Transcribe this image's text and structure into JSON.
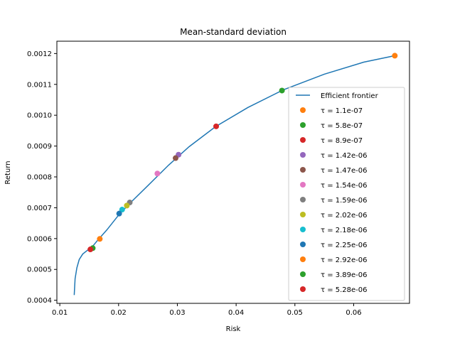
{
  "chart_data": {
    "type": "scatter",
    "title": "Mean-standard deviation",
    "xlabel": "Risk",
    "ylabel": "Return",
    "xlim": [
      0.0095,
      0.0695
    ],
    "ylim": [
      0.00039,
      0.00124
    ],
    "xticks": [
      0.01,
      0.02,
      0.03,
      0.04,
      0.05,
      0.06
    ],
    "xtick_labels": [
      "0.01",
      "0.02",
      "0.03",
      "0.04",
      "0.05",
      "0.06"
    ],
    "yticks": [
      0.0004,
      0.0005,
      0.0006,
      0.0007,
      0.0008,
      0.0009,
      0.001,
      0.0011,
      0.0012
    ],
    "ytick_labels": [
      "0.0004",
      "0.0005",
      "0.0006",
      "0.0007",
      "0.0008",
      "0.0009",
      "0.0010",
      "0.0011",
      "0.0012"
    ],
    "grid": false,
    "legend_position": "lower-right",
    "frontier": {
      "name": "Efficient frontier",
      "color": "#1f77b4",
      "x": [
        0.01245,
        0.0126,
        0.0129,
        0.0133,
        0.0139,
        0.0147,
        0.0155,
        0.0165,
        0.018,
        0.02,
        0.022,
        0.025,
        0.0285,
        0.032,
        0.0365,
        0.042,
        0.048,
        0.055,
        0.0617,
        0.067
      ],
      "y": [
        0.000417,
        0.00047,
        0.000505,
        0.000532,
        0.00055,
        0.000562,
        0.000573,
        0.000596,
        0.000628,
        0.000676,
        0.000716,
        0.000772,
        0.000838,
        0.000898,
        0.000963,
        0.001025,
        0.001082,
        0.001133,
        0.001172,
        0.001193
      ]
    },
    "points": [
      {
        "label": "τ = 1.1e-07",
        "color": "#ff7f0e",
        "x": 0.067,
        "y": 0.001193
      },
      {
        "label": "τ = 5.8e-07",
        "color": "#2ca02c",
        "x": 0.0478,
        "y": 0.00108
      },
      {
        "label": "τ = 8.9e-07",
        "color": "#d62728",
        "x": 0.0366,
        "y": 0.000964
      },
      {
        "label": "τ = 1.42e-06",
        "color": "#9467bd",
        "x": 0.0302,
        "y": 0.000872
      },
      {
        "label": "τ = 1.47e-06",
        "color": "#8c564b",
        "x": 0.0297,
        "y": 0.000861
      },
      {
        "label": "τ = 1.54e-06",
        "color": "#e377c2",
        "x": 0.0266,
        "y": 0.000811
      },
      {
        "label": "τ = 1.59e-06",
        "color": "#7f7f7f",
        "x": 0.0219,
        "y": 0.000717
      },
      {
        "label": "τ = 2.02e-06",
        "color": "#bcbd22",
        "x": 0.0214,
        "y": 0.000707
      },
      {
        "label": "τ = 2.18e-06",
        "color": "#17becf",
        "x": 0.0206,
        "y": 0.000694
      },
      {
        "label": "τ = 2.25e-06",
        "color": "#1f77b4",
        "x": 0.0201,
        "y": 0.000681
      },
      {
        "label": "τ = 2.92e-06",
        "color": "#ff7f0e",
        "x": 0.0168,
        "y": 0.000599
      },
      {
        "label": "τ = 3.89e-06",
        "color": "#2ca02c",
        "x": 0.0156,
        "y": 0.000569
      },
      {
        "label": "τ = 5.28e-06",
        "color": "#d62728",
        "x": 0.0152,
        "y": 0.000565
      }
    ]
  }
}
